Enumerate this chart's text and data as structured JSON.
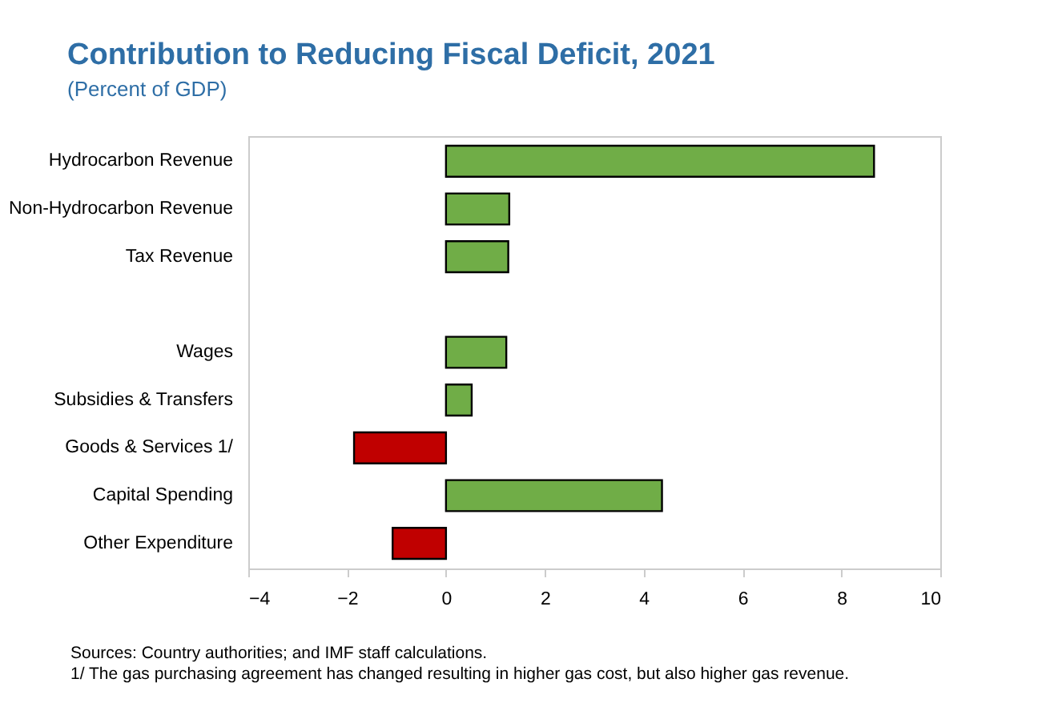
{
  "chart_data": {
    "type": "bar",
    "orientation": "horizontal",
    "title": "Contribution to Reducing Fiscal Deficit, 2021",
    "subtitle": "(Percent of GDP)",
    "categories": [
      "Hydrocarbon Revenue",
      "Non-Hydrocarbon Revenue",
      "Tax Revenue",
      null,
      "Wages",
      "Subsidies & Transfers",
      "Goods & Services 1/",
      "Capital Spending",
      "Other Expenditure"
    ],
    "values": [
      8.66,
      1.28,
      1.26,
      null,
      1.22,
      0.52,
      -1.86,
      4.37,
      -1.08
    ],
    "colors": [
      "#70ad47",
      "#70ad47",
      "#70ad47",
      null,
      "#70ad47",
      "#70ad47",
      "#c00000",
      "#70ad47",
      "#c00000"
    ],
    "xlim": [
      -4,
      10
    ],
    "xticks": [
      -4,
      -2,
      0,
      2,
      4,
      6,
      8,
      10
    ],
    "grid": false,
    "annotations": [
      "Sources: Country authorities; and IMF staff calculations.",
      "1/ The gas purchasing agreement has changed resulting in higher gas cost, but also higher gas revenue."
    ]
  }
}
